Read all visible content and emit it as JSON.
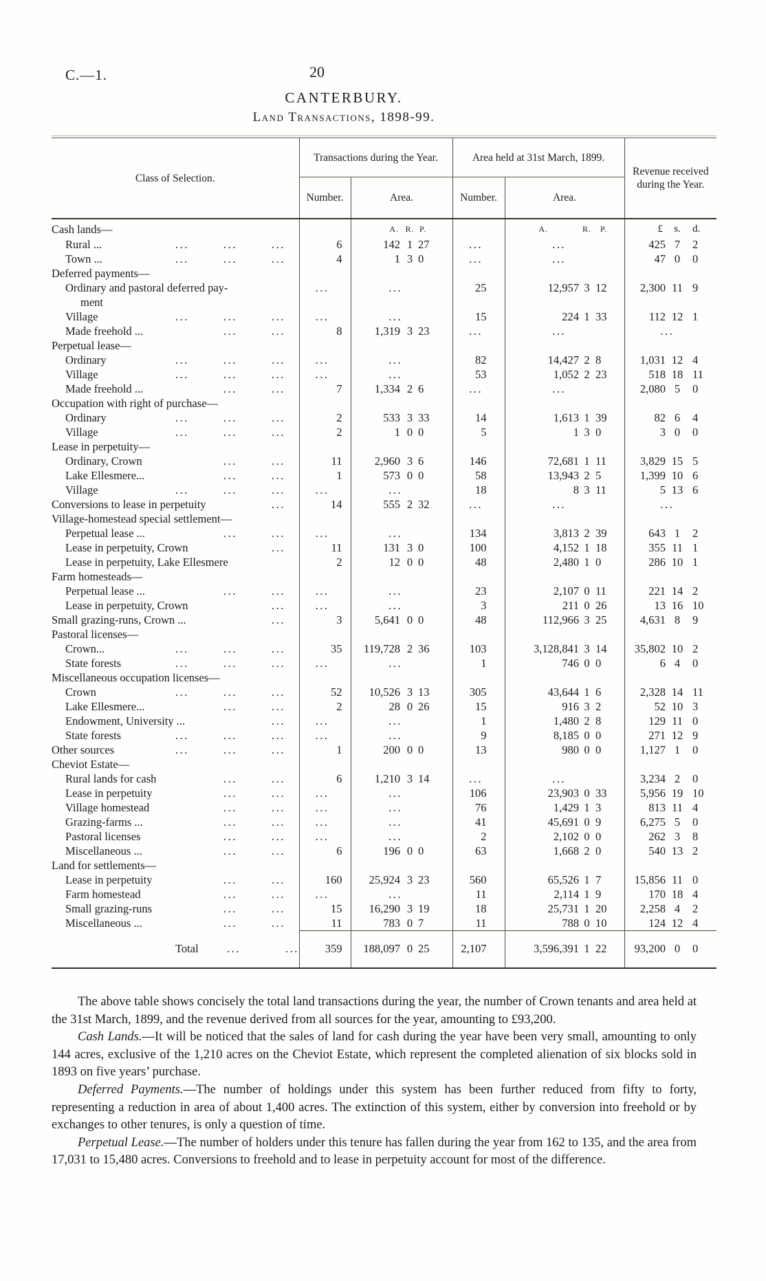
{
  "masthead": {
    "doc_ref": "C.—1.",
    "page_number": "20"
  },
  "title": "CANTERBURY.",
  "subtitle": "Land Transactions, 1898-99.",
  "table": {
    "headers": {
      "class": "Class of Selection.",
      "group1": "Transactions during the Year.",
      "group2": "Area held at 31st March, 1899.",
      "revenue": "Revenue received during the Year.",
      "number": "Number.",
      "area": "Area.",
      "area_units": [
        "A.",
        "R.",
        "P."
      ],
      "money_units": [
        "£",
        "s.",
        "d."
      ]
    },
    "rows": [
      {
        "t": "u",
        "l": "Cash lands—"
      },
      {
        "t": "i",
        "ind": 1,
        "l": "Rural ...",
        "d": 3,
        "n1": "6",
        "a1": [
          "142",
          "1",
          "27"
        ],
        "n2": "...",
        "a2": "...",
        "rv": [
          "425",
          "7",
          "2"
        ]
      },
      {
        "t": "i",
        "ind": 1,
        "l": "Town ...",
        "d": 3,
        "n1": "4",
        "a1": [
          "1",
          "3",
          "0"
        ],
        "n2": "...",
        "a2": "...",
        "rv": [
          "47",
          "0",
          "0"
        ]
      },
      {
        "t": "g",
        "l": "Deferred payments—"
      },
      {
        "t": "i",
        "ind": 1,
        "l": "Ordinary and pastoral deferred pay-",
        "l2": "ment",
        "d": 0,
        "n1": "...",
        "a1": "...",
        "n2": "25",
        "a2": [
          "12,957",
          "3",
          "12"
        ],
        "rv": [
          "2,300",
          "11",
          "9"
        ]
      },
      {
        "t": "i",
        "ind": 1,
        "l": "Village",
        "d": 3,
        "n1": "...",
        "a1": "...",
        "n2": "15",
        "a2": [
          "224",
          "1",
          "33"
        ],
        "rv": [
          "112",
          "12",
          "1"
        ]
      },
      {
        "t": "i",
        "ind": 1,
        "l": "Made freehold ...",
        "d": 2,
        "n1": "8",
        "a1": [
          "1,319",
          "3",
          "23"
        ],
        "n2": "...",
        "a2": "...",
        "rv": "..."
      },
      {
        "t": "g",
        "l": "Perpetual lease—"
      },
      {
        "t": "i",
        "ind": 1,
        "l": "Ordinary",
        "d": 3,
        "n1": "...",
        "a1": "...",
        "n2": "82",
        "a2": [
          "14,427",
          "2",
          "8"
        ],
        "rv": [
          "1,031",
          "12",
          "4"
        ]
      },
      {
        "t": "i",
        "ind": 1,
        "l": "Village",
        "d": 3,
        "n1": "...",
        "a1": "...",
        "n2": "53",
        "a2": [
          "1,052",
          "2",
          "23"
        ],
        "rv": [
          "518",
          "18",
          "11"
        ]
      },
      {
        "t": "i",
        "ind": 1,
        "l": "Made freehold ...",
        "d": 2,
        "n1": "7",
        "a1": [
          "1,334",
          "2",
          "6"
        ],
        "n2": "...",
        "a2": "...",
        "rv": [
          "2,080",
          "5",
          "0"
        ]
      },
      {
        "t": "g",
        "l": "Occupation with right of purchase—"
      },
      {
        "t": "i",
        "ind": 1,
        "l": "Ordinary",
        "d": 3,
        "n1": "2",
        "a1": [
          "533",
          "3",
          "33"
        ],
        "n2": "14",
        "a2": [
          "1,613",
          "1",
          "39"
        ],
        "rv": [
          "82",
          "6",
          "4"
        ]
      },
      {
        "t": "i",
        "ind": 1,
        "l": "Village",
        "d": 3,
        "n1": "2",
        "a1": [
          "1",
          "0",
          "0"
        ],
        "n2": "5",
        "a2": [
          "1",
          "3",
          "0"
        ],
        "rv": [
          "3",
          "0",
          "0"
        ]
      },
      {
        "t": "g",
        "l": "Lease in perpetuity—"
      },
      {
        "t": "i",
        "ind": 1,
        "l": "Ordinary, Crown",
        "d": 2,
        "n1": "11",
        "a1": [
          "2,960",
          "3",
          "6"
        ],
        "n2": "146",
        "a2": [
          "72,681",
          "1",
          "11"
        ],
        "rv": [
          "3,829",
          "15",
          "5"
        ]
      },
      {
        "t": "i",
        "ind": 1,
        "l": "Lake Ellesmere...",
        "d": 2,
        "n1": "1",
        "a1": [
          "573",
          "0",
          "0"
        ],
        "n2": "58",
        "a2": [
          "13,943",
          "2",
          "5"
        ],
        "rv": [
          "1,399",
          "10",
          "6"
        ]
      },
      {
        "t": "i",
        "ind": 1,
        "l": "Village",
        "d": 3,
        "n1": "...",
        "a1": "...",
        "n2": "18",
        "a2": [
          "8",
          "3",
          "11"
        ],
        "rv": [
          "5",
          "13",
          "6"
        ]
      },
      {
        "t": "i",
        "ind": 0,
        "l": "Conversions to lease in perpetuity",
        "d": 1,
        "n1": "14",
        "a1": [
          "555",
          "2",
          "32"
        ],
        "n2": "...",
        "a2": "...",
        "rv": "..."
      },
      {
        "t": "g",
        "l": "Village-homestead special settlement—"
      },
      {
        "t": "i",
        "ind": 1,
        "l": "Perpetual lease ...",
        "d": 2,
        "n1": "...",
        "a1": "...",
        "n2": "134",
        "a2": [
          "3,813",
          "2",
          "39"
        ],
        "rv": [
          "643",
          "1",
          "2"
        ]
      },
      {
        "t": "i",
        "ind": 1,
        "l": "Lease in perpetuity, Crown",
        "d": 1,
        "n1": "11",
        "a1": [
          "131",
          "3",
          "0"
        ],
        "n2": "100",
        "a2": [
          "4,152",
          "1",
          "18"
        ],
        "rv": [
          "355",
          "11",
          "1"
        ]
      },
      {
        "t": "i",
        "ind": 1,
        "l": "Lease in perpetuity, Lake Ellesmere",
        "d": 0,
        "n1": "2",
        "a1": [
          "12",
          "0",
          "0"
        ],
        "n2": "48",
        "a2": [
          "2,480",
          "1",
          "0"
        ],
        "rv": [
          "286",
          "10",
          "1"
        ]
      },
      {
        "t": "g",
        "l": "Farm homesteads—"
      },
      {
        "t": "i",
        "ind": 1,
        "l": "Perpetual lease ...",
        "d": 2,
        "n1": "...",
        "a1": "...",
        "n2": "23",
        "a2": [
          "2,107",
          "0",
          "11"
        ],
        "rv": [
          "221",
          "14",
          "2"
        ]
      },
      {
        "t": "i",
        "ind": 1,
        "l": "Lease in perpetuity, Crown",
        "d": 1,
        "n1": "...",
        "a1": "...",
        "n2": "3",
        "a2": [
          "211",
          "0",
          "26"
        ],
        "rv": [
          "13",
          "16",
          "10"
        ]
      },
      {
        "t": "i",
        "ind": 0,
        "l": "Small grazing-runs, Crown ...",
        "d": 1,
        "n1": "3",
        "a1": [
          "5,641",
          "0",
          "0"
        ],
        "n2": "48",
        "a2": [
          "112,966",
          "3",
          "25"
        ],
        "rv": [
          "4,631",
          "8",
          "9"
        ]
      },
      {
        "t": "g",
        "l": "Pastoral licenses—"
      },
      {
        "t": "i",
        "ind": 1,
        "l": "Crown...",
        "d": 3,
        "n1": "35",
        "a1": [
          "119,728",
          "2",
          "36"
        ],
        "n2": "103",
        "a2": [
          "3,128,841",
          "3",
          "14"
        ],
        "rv": [
          "35,802",
          "10",
          "2"
        ]
      },
      {
        "t": "i",
        "ind": 1,
        "l": "State forests",
        "d": 3,
        "n1": "...",
        "a1": "...",
        "n2": "1",
        "a2": [
          "746",
          "0",
          "0"
        ],
        "rv": [
          "6",
          "4",
          "0"
        ]
      },
      {
        "t": "g",
        "l": "Miscellaneous occupation licenses—"
      },
      {
        "t": "i",
        "ind": 1,
        "l": "Crown",
        "d": 3,
        "n1": "52",
        "a1": [
          "10,526",
          "3",
          "13"
        ],
        "n2": "305",
        "a2": [
          "43,644",
          "1",
          "6"
        ],
        "rv": [
          "2,328",
          "14",
          "11"
        ]
      },
      {
        "t": "i",
        "ind": 1,
        "l": "Lake Ellesmere...",
        "d": 2,
        "n1": "2",
        "a1": [
          "28",
          "0",
          "26"
        ],
        "n2": "15",
        "a2": [
          "916",
          "3",
          "2"
        ],
        "rv": [
          "52",
          "10",
          "3"
        ]
      },
      {
        "t": "i",
        "ind": 1,
        "l": "Endowment, University ...",
        "d": 1,
        "n1": "...",
        "a1": "...",
        "n2": "1",
        "a2": [
          "1,480",
          "2",
          "8"
        ],
        "rv": [
          "129",
          "11",
          "0"
        ]
      },
      {
        "t": "i",
        "ind": 1,
        "l": "State forests",
        "d": 3,
        "n1": "...",
        "a1": "...",
        "n2": "9",
        "a2": [
          "8,185",
          "0",
          "0"
        ],
        "rv": [
          "271",
          "12",
          "9"
        ]
      },
      {
        "t": "i",
        "ind": 0,
        "l": "Other sources",
        "d": 3,
        "n1": "1",
        "a1": [
          "200",
          "0",
          "0"
        ],
        "n2": "13",
        "a2": [
          "980",
          "0",
          "0"
        ],
        "rv": [
          "1,127",
          "1",
          "0"
        ]
      },
      {
        "t": "g",
        "l": "Cheviot Estate—"
      },
      {
        "t": "i",
        "ind": 1,
        "l": "Rural lands for cash",
        "d": 2,
        "n1": "6",
        "a1": [
          "1,210",
          "3",
          "14"
        ],
        "n2": "...",
        "a2": "...",
        "rv": [
          "3,234",
          "2",
          "0"
        ]
      },
      {
        "t": "i",
        "ind": 1,
        "l": "Lease in perpetuity",
        "d": 2,
        "n1": "...",
        "a1": "...",
        "n2": "106",
        "a2": [
          "23,903",
          "0",
          "33"
        ],
        "rv": [
          "5,956",
          "19",
          "10"
        ]
      },
      {
        "t": "i",
        "ind": 1,
        "l": "Village homestead",
        "d": 2,
        "n1": "...",
        "a1": "...",
        "n2": "76",
        "a2": [
          "1,429",
          "1",
          "3"
        ],
        "rv": [
          "813",
          "11",
          "4"
        ]
      },
      {
        "t": "i",
        "ind": 1,
        "l": "Grazing-farms ...",
        "d": 2,
        "n1": "...",
        "a1": "...",
        "n2": "41",
        "a2": [
          "45,691",
          "0",
          "9"
        ],
        "rv": [
          "6,275",
          "5",
          "0"
        ]
      },
      {
        "t": "i",
        "ind": 1,
        "l": "Pastoral licenses",
        "d": 2,
        "n1": "...",
        "a1": "...",
        "n2": "2",
        "a2": [
          "2,102",
          "0",
          "0"
        ],
        "rv": [
          "262",
          "3",
          "8"
        ]
      },
      {
        "t": "i",
        "ind": 1,
        "l": "Miscellaneous ...",
        "d": 2,
        "n1": "6",
        "a1": [
          "196",
          "0",
          "0"
        ],
        "n2": "63",
        "a2": [
          "1,668",
          "2",
          "0"
        ],
        "rv": [
          "540",
          "13",
          "2"
        ]
      },
      {
        "t": "g",
        "l": "Land for settlements—"
      },
      {
        "t": "i",
        "ind": 1,
        "l": "Lease in perpetuity",
        "d": 2,
        "n1": "160",
        "a1": [
          "25,924",
          "3",
          "23"
        ],
        "n2": "560",
        "a2": [
          "65,526",
          "1",
          "7"
        ],
        "rv": [
          "15,856",
          "11",
          "0"
        ]
      },
      {
        "t": "i",
        "ind": 1,
        "l": "Farm homestead",
        "d": 2,
        "n1": "...",
        "a1": "...",
        "n2": "11",
        "a2": [
          "2,114",
          "1",
          "9"
        ],
        "rv": [
          "170",
          "18",
          "4"
        ]
      },
      {
        "t": "i",
        "ind": 1,
        "l": "Small grazing-runs",
        "d": 2,
        "n1": "15",
        "a1": [
          "16,290",
          "3",
          "19"
        ],
        "n2": "18",
        "a2": [
          "25,731",
          "1",
          "20"
        ],
        "rv": [
          "2,258",
          "4",
          "2"
        ]
      },
      {
        "t": "i",
        "ind": 1,
        "l": "Miscellaneous ...",
        "d": 2,
        "n1": "11",
        "a1": [
          "783",
          "0",
          "7"
        ],
        "n2": "11",
        "a2": [
          "788",
          "0",
          "10"
        ],
        "rv": [
          "124",
          "12",
          "4"
        ]
      }
    ],
    "total": {
      "label": "Total",
      "leaders": [
        "...",
        "..."
      ],
      "n1": "359",
      "a1": [
        "188,097",
        "0",
        "25"
      ],
      "n2": "2,107",
      "a2": [
        "3,596,391",
        "1",
        "22"
      ],
      "rv": [
        "93,200",
        "0",
        "0"
      ]
    }
  },
  "paragraphs": [
    {
      "lead": "",
      "text": "The above table shows concisely the total land transactions during the year, the number of Crown tenants and area held at the 31st March, 1899, and the revenue derived from all sources for the year, amounting to £93,200."
    },
    {
      "lead": "Cash Lands.",
      "text": "—It will be noticed that the sales of land for cash during the year have been very small, amounting to only 144 acres, exclusive of the 1,210 acres on the Cheviot Estate, which represent the completed alienation of six blocks sold in 1893 on five years’ purchase."
    },
    {
      "lead": "Deferred Payments.",
      "text": "—The number of holdings under this system has been further reduced from fifty to forty, representing a reduction in area of about 1,400 acres.  The extinction of this system, either by conversion into freehold or by exchanges to other tenures, is only a question of time."
    },
    {
      "lead": "Perpetual Lease.",
      "text": "—The number of holders under this tenure has fallen during the year from 162 to 135, and the area from 17,031 to 15,480 acres.  Conversions to freehold and to lease in perpetuity account for most of the difference."
    }
  ]
}
